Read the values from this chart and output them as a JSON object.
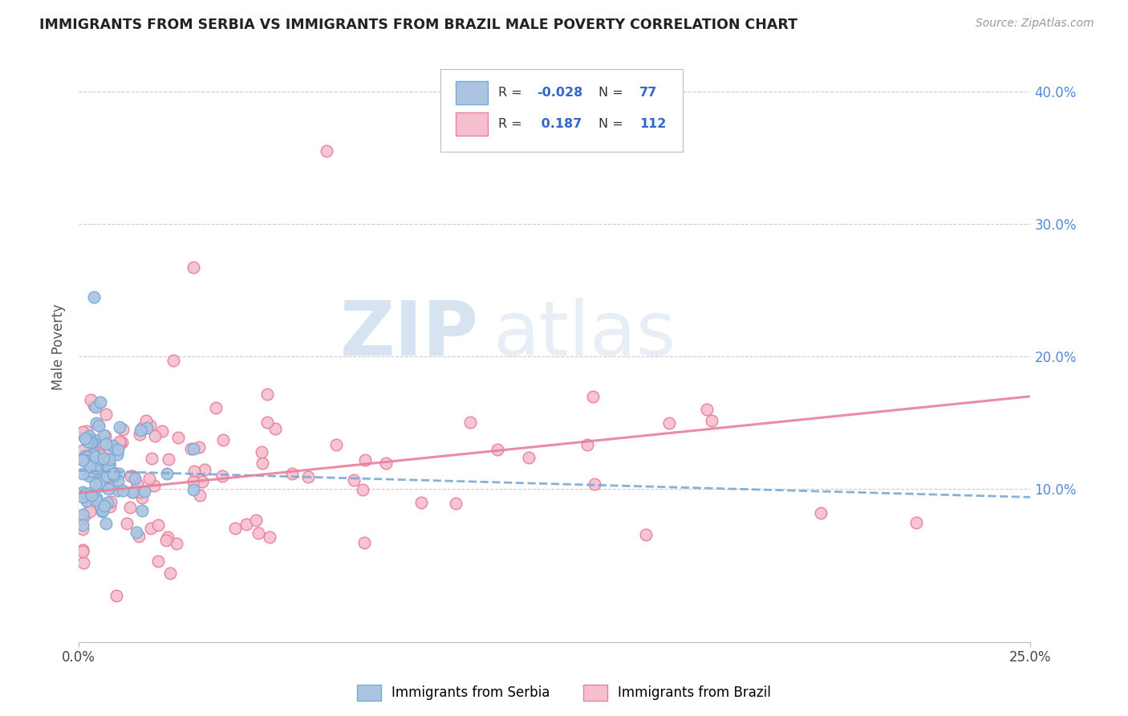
{
  "title": "IMMIGRANTS FROM SERBIA VS IMMIGRANTS FROM BRAZIL MALE POVERTY CORRELATION CHART",
  "source": "Source: ZipAtlas.com",
  "ylabel": "Male Poverty",
  "right_yticks": [
    "40.0%",
    "30.0%",
    "20.0%",
    "10.0%"
  ],
  "right_ytick_vals": [
    0.4,
    0.3,
    0.2,
    0.1
  ],
  "legend_label1": "Immigrants from Serbia",
  "legend_label2": "Immigrants from Brazil",
  "R1": -0.028,
  "N1": 77,
  "R2": 0.187,
  "N2": 112,
  "color_serbia": "#aac4e2",
  "color_serbia_edge": "#7aaad4",
  "color_brazil": "#f5bfcf",
  "color_brazil_edge": "#e8809a",
  "trendline_serbia_color": "#7aaad4",
  "trendline_brazil_color": "#e8809a",
  "watermark_zip": "ZIP",
  "watermark_atlas": "atlas",
  "xlim": [
    0.0,
    0.25
  ],
  "ylim": [
    -0.015,
    0.43
  ],
  "background": "#ffffff",
  "grid_color": "#cccccc",
  "serbia_trendline_start_y": 0.114,
  "serbia_trendline_end_y": 0.094,
  "brazil_trendline_start_y": 0.097,
  "brazil_trendline_end_y": 0.17
}
